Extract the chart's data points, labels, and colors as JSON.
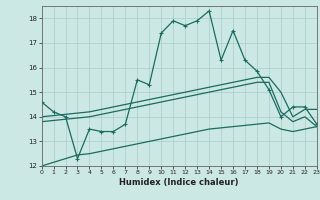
{
  "xlabel": "Humidex (Indice chaleur)",
  "bg_color": "#cce8e4",
  "grid_color": "#aaccca",
  "line_color": "#1a6b60",
  "xlim": [
    0,
    23
  ],
  "ylim": [
    12,
    18.5
  ],
  "yticks": [
    12,
    13,
    14,
    15,
    16,
    17,
    18
  ],
  "xticks": [
    0,
    1,
    2,
    3,
    4,
    5,
    6,
    7,
    8,
    9,
    10,
    11,
    12,
    13,
    14,
    15,
    16,
    17,
    18,
    19,
    20,
    21,
    22,
    23
  ],
  "line1_x": [
    0,
    1,
    2,
    3,
    4,
    5,
    6,
    7,
    8,
    9,
    10,
    11,
    12,
    13,
    14,
    15,
    16,
    17,
    18,
    19,
    20,
    21,
    22,
    23
  ],
  "line1_y": [
    14.6,
    14.2,
    14.0,
    12.3,
    13.5,
    13.4,
    13.4,
    13.7,
    15.5,
    15.3,
    17.4,
    17.9,
    17.7,
    17.9,
    18.3,
    16.3,
    17.5,
    16.3,
    15.85,
    15.1,
    14.0,
    14.4,
    14.4,
    13.7
  ],
  "line2_x": [
    0,
    1,
    2,
    3,
    4,
    5,
    6,
    7,
    8,
    9,
    10,
    11,
    12,
    13,
    14,
    15,
    16,
    17,
    18,
    19,
    20,
    21,
    22,
    23
  ],
  "line2_y": [
    14.0,
    14.05,
    14.1,
    14.15,
    14.2,
    14.3,
    14.4,
    14.5,
    14.6,
    14.7,
    14.8,
    14.9,
    15.0,
    15.1,
    15.2,
    15.3,
    15.4,
    15.5,
    15.6,
    15.6,
    15.0,
    14.0,
    14.3,
    14.3
  ],
  "line3_x": [
    0,
    1,
    2,
    3,
    4,
    5,
    6,
    7,
    8,
    9,
    10,
    11,
    12,
    13,
    14,
    15,
    16,
    17,
    18,
    19,
    20,
    21,
    22,
    23
  ],
  "line3_y": [
    13.8,
    13.85,
    13.9,
    13.95,
    14.0,
    14.1,
    14.2,
    14.3,
    14.4,
    14.5,
    14.6,
    14.7,
    14.8,
    14.9,
    15.0,
    15.1,
    15.2,
    15.3,
    15.4,
    15.4,
    14.2,
    13.8,
    14.0,
    13.6
  ],
  "line4_x": [
    0,
    1,
    2,
    3,
    4,
    5,
    6,
    7,
    8,
    9,
    10,
    11,
    12,
    13,
    14,
    15,
    16,
    17,
    18,
    19,
    20,
    21,
    22,
    23
  ],
  "line4_y": [
    12.0,
    12.15,
    12.3,
    12.45,
    12.5,
    12.6,
    12.7,
    12.8,
    12.9,
    13.0,
    13.1,
    13.2,
    13.3,
    13.4,
    13.5,
    13.55,
    13.6,
    13.65,
    13.7,
    13.75,
    13.5,
    13.4,
    13.5,
    13.6
  ]
}
